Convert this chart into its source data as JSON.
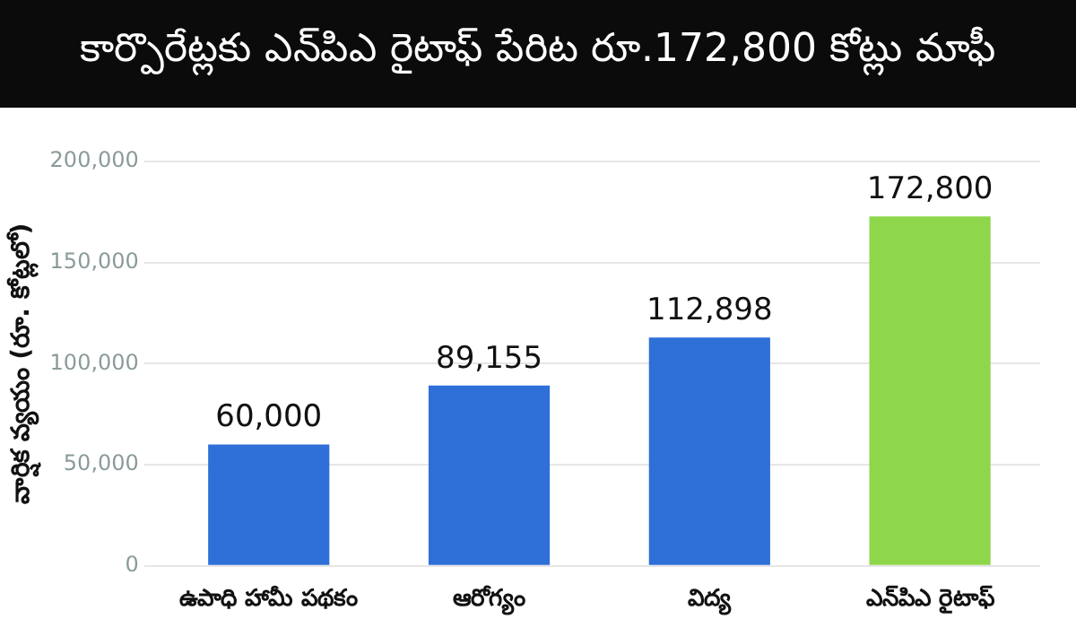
{
  "chart_data": {
    "type": "bar",
    "title": "కార్పొరేట్లకు ఎన్‌పిఎ రైటాఫ్ పేరిట రూ.172,800 కోట్లు మాఫీ",
    "ylabel": "వార్షిక వ్యయం (రూ. కోట్లలో)",
    "categories": [
      "ఉపాధి హామీ పథకం",
      "ఆరోగ్యం",
      "విద్య",
      "ఎన్‌పిఎ రైటాఫ్"
    ],
    "values": [
      60000,
      89155,
      112898,
      172800
    ],
    "colors": [
      "#2f6fd8",
      "#2f6fd8",
      "#2f6fd8",
      "#8ed64a"
    ],
    "ylim": [
      0,
      200000
    ],
    "yticks": [
      {
        "value": 0,
        "label": "0"
      },
      {
        "value": 50000,
        "label": "50,000"
      },
      {
        "value": 100000,
        "label": "100,000"
      },
      {
        "value": 150000,
        "label": "150,000"
      },
      {
        "value": 200000,
        "label": "200,000"
      }
    ],
    "grid": "y",
    "value_labels": [
      "60,000",
      "89,155",
      "112,898",
      "172,800"
    ]
  }
}
